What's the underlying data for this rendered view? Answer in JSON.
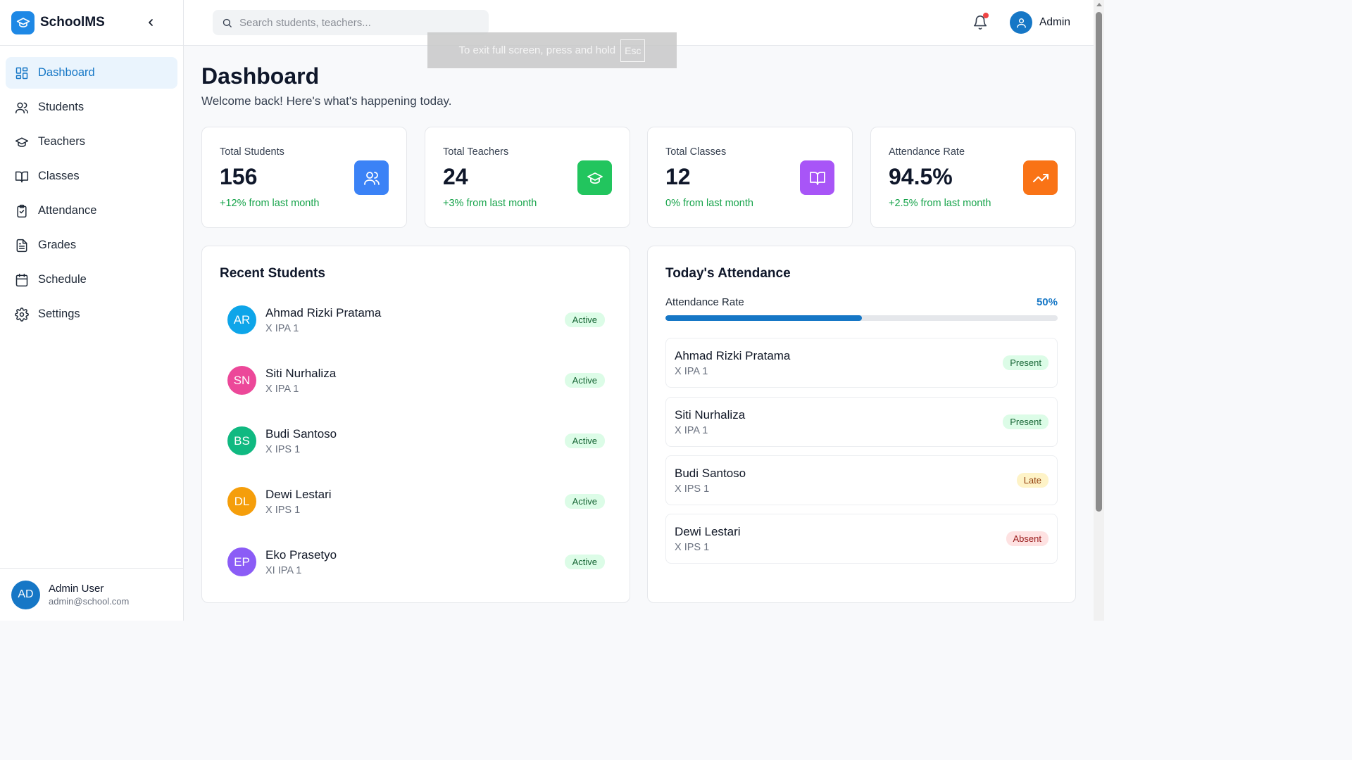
{
  "app": {
    "name": "SchoolMS"
  },
  "sidebar": {
    "items": [
      {
        "label": "Dashboard",
        "icon": "dashboard-icon",
        "active": true
      },
      {
        "label": "Students",
        "icon": "users-icon"
      },
      {
        "label": "Teachers",
        "icon": "graduation-cap-icon"
      },
      {
        "label": "Classes",
        "icon": "book-icon"
      },
      {
        "label": "Attendance",
        "icon": "clipboard-check-icon"
      },
      {
        "label": "Grades",
        "icon": "file-text-icon"
      },
      {
        "label": "Schedule",
        "icon": "calendar-icon"
      },
      {
        "label": "Settings",
        "icon": "gear-icon"
      }
    ],
    "user": {
      "initials": "AD",
      "name": "Admin User",
      "email": "admin@school.com"
    }
  },
  "topbar": {
    "search_placeholder": "Search students, teachers...",
    "admin_label": "Admin"
  },
  "fullscreen_notice": {
    "text": "To exit full screen, press and hold",
    "key": "Esc"
  },
  "page": {
    "title": "Dashboard",
    "subtitle": "Welcome back! Here's what's happening today."
  },
  "stats": [
    {
      "label": "Total Students",
      "value": "156",
      "change": "+12% from last month",
      "icon": "users-icon",
      "color": "#3b82f6"
    },
    {
      "label": "Total Teachers",
      "value": "24",
      "change": "+3% from last month",
      "icon": "graduation-cap-icon",
      "color": "#22c55e"
    },
    {
      "label": "Total Classes",
      "value": "12",
      "change": "0% from last month",
      "icon": "book-icon",
      "color": "#a855f7"
    },
    {
      "label": "Attendance Rate",
      "value": "94.5%",
      "change": "+2.5% from last month",
      "icon": "trending-up-icon",
      "color": "#f97316"
    }
  ],
  "recent_students": {
    "title": "Recent Students",
    "items": [
      {
        "initials": "AR",
        "name": "Ahmad Rizki Pratama",
        "class": "X IPA 1",
        "status": "Active",
        "color": "#0ea5e9"
      },
      {
        "initials": "SN",
        "name": "Siti Nurhaliza",
        "class": "X IPA 1",
        "status": "Active",
        "color": "#ec4899"
      },
      {
        "initials": "BS",
        "name": "Budi Santoso",
        "class": "X IPS 1",
        "status": "Active",
        "color": "#10b981"
      },
      {
        "initials": "DL",
        "name": "Dewi Lestari",
        "class": "X IPS 1",
        "status": "Active",
        "color": "#f59e0b"
      },
      {
        "initials": "EP",
        "name": "Eko Prasetyo",
        "class": "XI IPA 1",
        "status": "Active",
        "color": "#8b5cf6"
      }
    ]
  },
  "attendance": {
    "title": "Today's Attendance",
    "rate_label": "Attendance Rate",
    "rate_value": "50%",
    "rate_fraction": 0.5,
    "items": [
      {
        "name": "Ahmad Rizki Pratama",
        "class": "X IPA 1",
        "status": "Present"
      },
      {
        "name": "Siti Nurhaliza",
        "class": "X IPA 1",
        "status": "Present"
      },
      {
        "name": "Budi Santoso",
        "class": "X IPS 1",
        "status": "Late"
      },
      {
        "name": "Dewi Lestari",
        "class": "X IPS 1",
        "status": "Absent"
      }
    ]
  }
}
